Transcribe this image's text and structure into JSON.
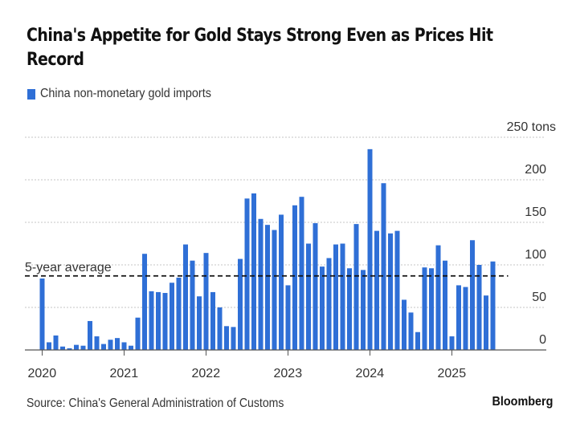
{
  "title": "China's Appetite for Gold Stays Strong Even as Prices Hit Record",
  "legend": {
    "label": "China non-monetary gold imports",
    "color": "#2f6fd6"
  },
  "source": "Source: China's General Administration of Customs",
  "brand": "Bloomberg",
  "chart_data": {
    "type": "bar",
    "title": "China's Appetite for Gold Stays Strong Even as Prices Hit Record",
    "xlabel": "",
    "ylabel": "tons",
    "ylim": [
      0,
      250
    ],
    "yticks": [
      0,
      50,
      100,
      150,
      200,
      250
    ],
    "ytick_labels": [
      "0",
      "50",
      "100",
      "150",
      "200",
      "250 tons"
    ],
    "y_axis_side": "right",
    "grid": true,
    "xtick_labels": [
      "2020",
      "2021",
      "2022",
      "2023",
      "2024",
      "2025"
    ],
    "start": "2020-01",
    "frequency": "monthly",
    "reference_line": {
      "label": "5-year average",
      "value": 87,
      "style": "dashed"
    },
    "series": [
      {
        "name": "China non-monetary gold imports",
        "color": "#2f6fd6",
        "values": [
          84,
          9,
          17,
          4,
          2,
          6,
          5,
          34,
          16,
          7,
          12,
          14,
          9,
          5,
          38,
          113,
          69,
          68,
          67,
          79,
          85,
          124,
          105,
          63,
          114,
          68,
          50,
          28,
          27,
          107,
          178,
          184,
          154,
          147,
          141,
          159,
          76,
          170,
          180,
          125,
          149,
          98,
          108,
          124,
          125,
          96,
          148,
          94,
          236,
          140,
          196,
          137,
          140,
          59,
          44,
          21,
          97,
          96,
          123,
          105,
          16,
          76,
          74,
          129,
          100,
          64,
          104
        ]
      }
    ],
    "legend_position": "top-left"
  }
}
